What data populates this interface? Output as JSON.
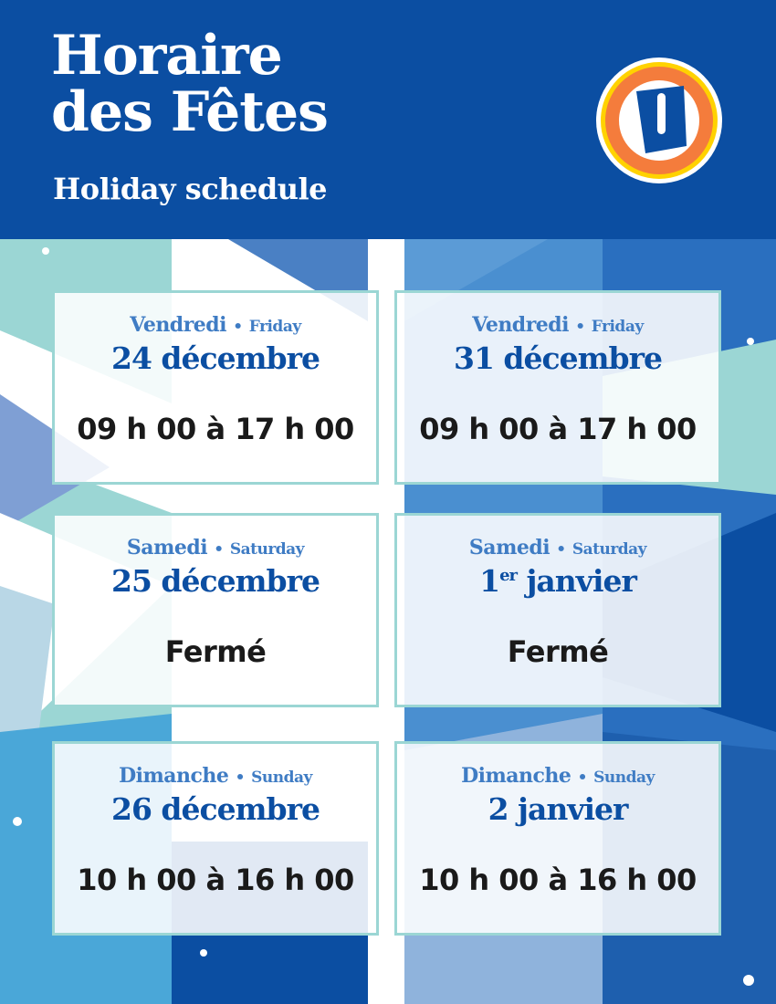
{
  "header": {
    "title_line1": "Horaire",
    "title_line2": "des Fêtes",
    "subtitle": "Holiday schedule",
    "logo_letter": "U",
    "colors": {
      "blue": "#0b4ea2",
      "orange": "#f47c3c",
      "yellow": "#ffd200"
    }
  },
  "separator": "•",
  "cards": [
    {
      "day_fr": "Vendredi",
      "day_en": "Friday",
      "date": "24 décembre",
      "date_sup": "",
      "date_rest": "",
      "hours": "09 h 00 à 17 h 00"
    },
    {
      "day_fr": "Vendredi",
      "day_en": "Friday",
      "date": "31 décembre",
      "date_sup": "",
      "date_rest": "",
      "hours": "09 h 00 à 17 h 00"
    },
    {
      "day_fr": "Samedi",
      "day_en": "Saturday",
      "date": "25 décembre",
      "date_sup": "",
      "date_rest": "",
      "hours": "Fermé"
    },
    {
      "day_fr": "Samedi",
      "day_en": "Saturday",
      "date": "1",
      "date_sup": "er",
      "date_rest": " janvier",
      "hours": "Fermé"
    },
    {
      "day_fr": "Dimanche",
      "day_en": "Sunday",
      "date": "26 décembre",
      "date_sup": "",
      "date_rest": "",
      "hours": "10 h 00 à 16 h 00"
    },
    {
      "day_fr": "Dimanche",
      "day_en": "Sunday",
      "date": "2 janvier",
      "date_sup": "",
      "date_rest": "",
      "hours": "10 h 00 à 16 h 00"
    }
  ]
}
